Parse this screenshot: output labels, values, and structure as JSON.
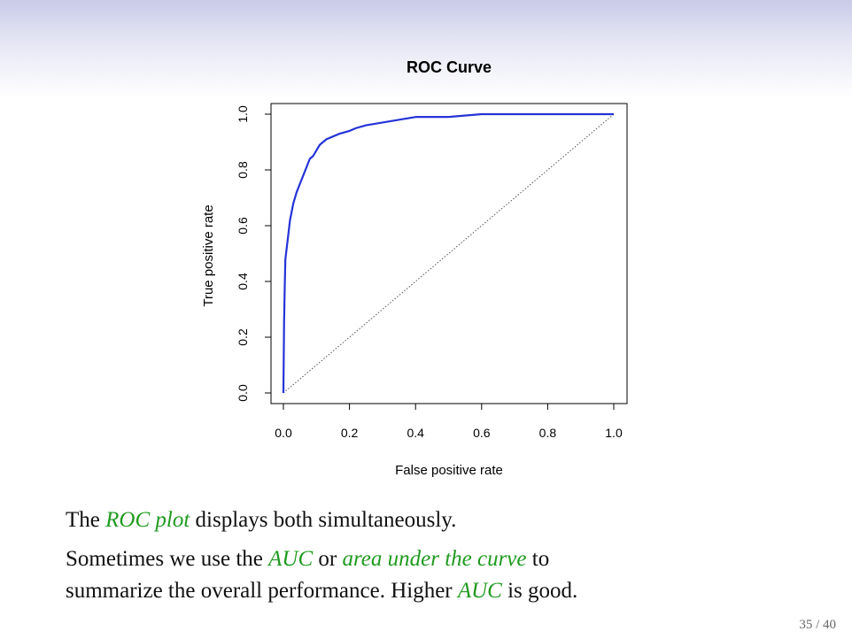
{
  "colors": {
    "curve": "#2433d8",
    "highlight": "#1f9a1f",
    "text": "#111111",
    "header": "#c9cbe8"
  },
  "chart_data": {
    "type": "line",
    "title": "ROC Curve",
    "xlabel": "False positive rate",
    "ylabel": "True positive rate",
    "xlim": [
      0,
      1
    ],
    "ylim": [
      0,
      1
    ],
    "xticks": [
      "0.0",
      "0.2",
      "0.4",
      "0.6",
      "0.8",
      "1.0"
    ],
    "yticks": [
      "0.0",
      "0.2",
      "0.4",
      "0.6",
      "0.8",
      "1.0"
    ],
    "grid": false,
    "series": [
      {
        "x": [
          0,
          0.002,
          0.004,
          0.006,
          0.008,
          0.01,
          0.015,
          0.02,
          0.025,
          0.03,
          0.04,
          0.05,
          0.06,
          0.07,
          0.08,
          0.09,
          0.1,
          0.11,
          0.12,
          0.13,
          0.15,
          0.17,
          0.2,
          0.22,
          0.25,
          0.3,
          0.35,
          0.4,
          0.5,
          0.6,
          0.8,
          1.0
        ],
        "y": [
          0,
          0.25,
          0.38,
          0.48,
          0.5,
          0.52,
          0.57,
          0.62,
          0.65,
          0.68,
          0.72,
          0.75,
          0.78,
          0.81,
          0.84,
          0.85,
          0.87,
          0.89,
          0.9,
          0.91,
          0.92,
          0.93,
          0.94,
          0.95,
          0.96,
          0.97,
          0.98,
          0.99,
          0.99,
          1.0,
          1.0,
          1.0
        ]
      },
      {
        "x": [
          0,
          1
        ],
        "y": [
          0,
          1
        ]
      }
    ]
  },
  "body": {
    "line1": {
      "pre": "The",
      "hl": "ROC plot",
      "post": "displays both simultaneously."
    },
    "line2": {
      "pre": "Sometimes we use the",
      "hl1": "AUC",
      "mid": "or",
      "hl2": "area under the curve",
      "post": "to"
    },
    "line3": {
      "pre": "summarize the overall performance.  Higher",
      "hl": "AUC",
      "post": "is good."
    }
  },
  "footer": {
    "page": "35 / 40"
  }
}
